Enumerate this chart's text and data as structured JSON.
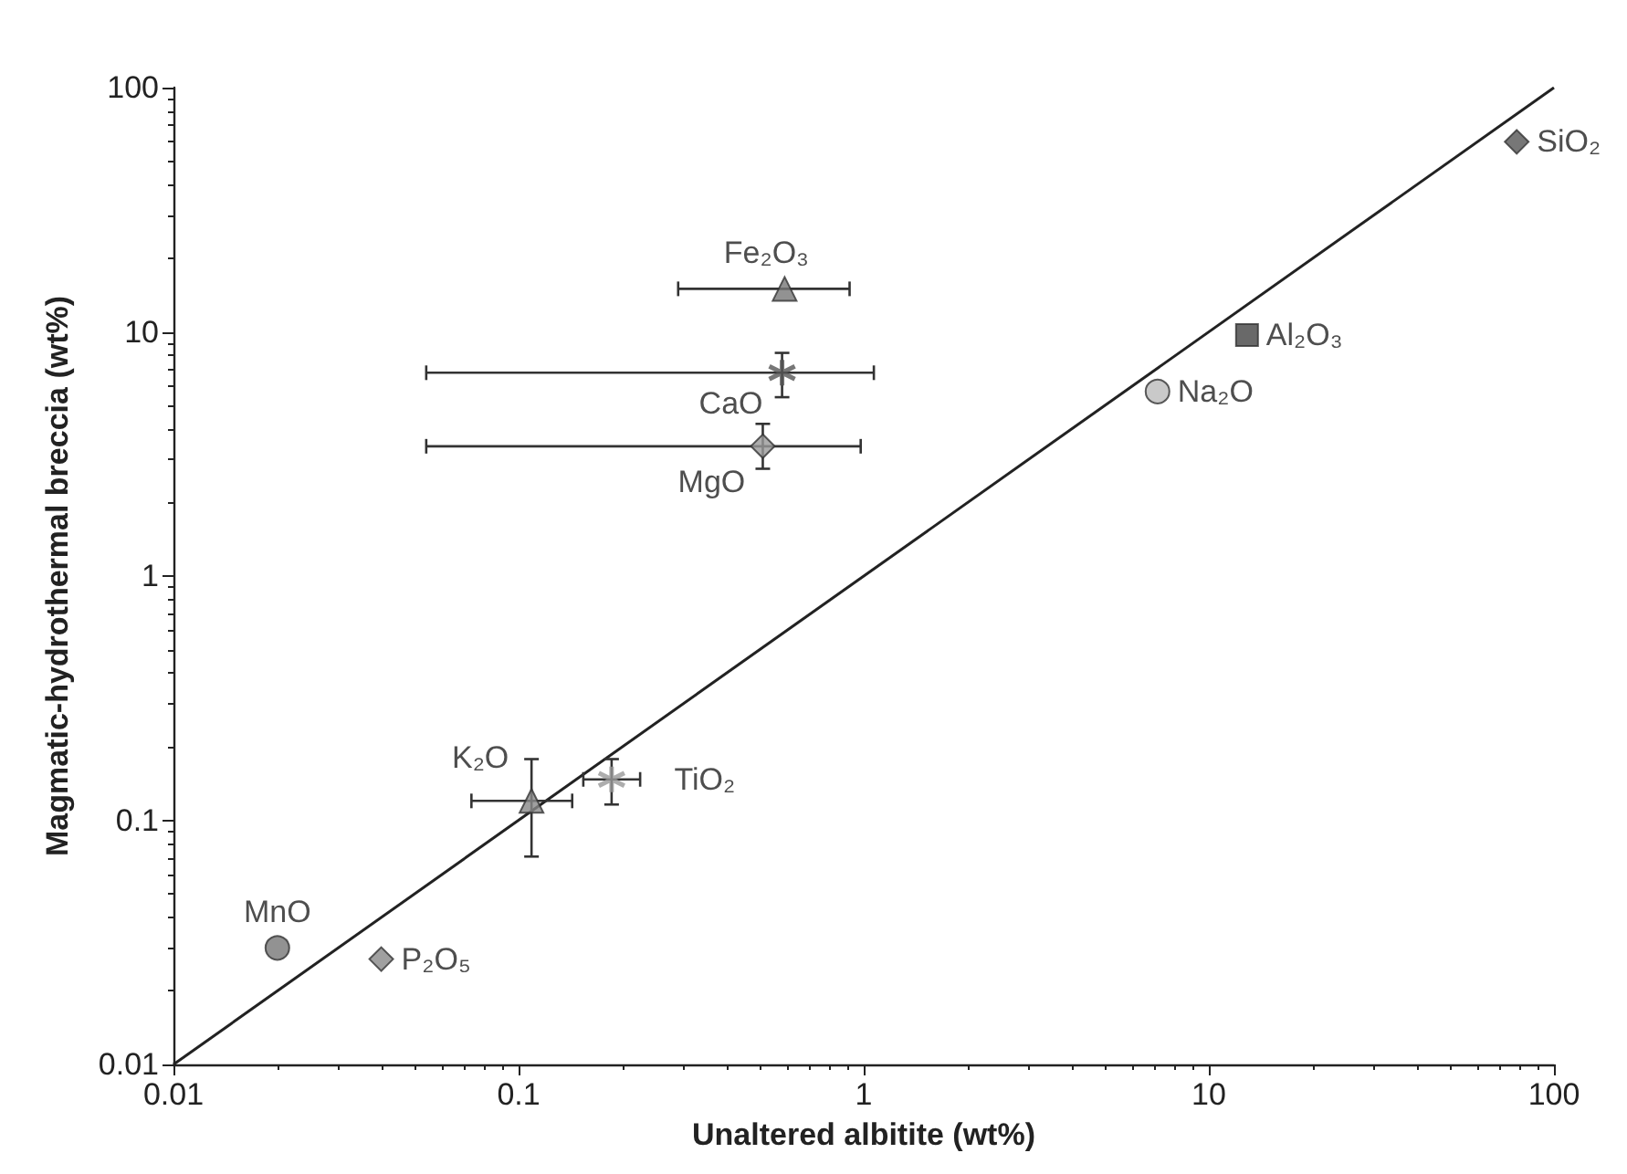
{
  "chart_data": {
    "type": "scatter",
    "xlabel": "Unaltered albitite (wt%)",
    "ylabel": "Magmatic-hydrothermal breccia (wt%)",
    "log": "xy",
    "grid": false,
    "legend": false,
    "xlim": [
      0.01,
      100
    ],
    "ylim": [
      0.01,
      100
    ],
    "xticks": [
      0.01,
      0.1,
      1,
      10,
      100
    ],
    "yticks": [
      0.01,
      0.1,
      1,
      10,
      100
    ],
    "series": [
      {
        "type": "line",
        "color": "#222222",
        "marker": "none",
        "line_style": "solid",
        "x": [
          0.01,
          100
        ],
        "values": [
          0.01,
          100
        ]
      },
      {
        "name": "Fe₂O₃",
        "color": "#777777",
        "marker": "triangle",
        "x": [
          0.59
        ],
        "values": [
          15
        ],
        "xerrors": [
          [
            0.29,
            0.91
          ]
        ]
      },
      {
        "name": "CaO",
        "color": "#555555",
        "marker": "cross",
        "x": [
          0.58
        ],
        "values": [
          6.8
        ],
        "errors": [
          [
            5.4,
            8.2
          ]
        ],
        "xerrors": [
          [
            0.054,
            1.07
          ]
        ]
      },
      {
        "name": "MgO",
        "color": "#999999",
        "marker": "diamond",
        "x": [
          0.51
        ],
        "values": [
          3.4
        ],
        "errors": [
          [
            2.75,
            4.2
          ]
        ],
        "xerrors": [
          [
            0.054,
            0.98
          ]
        ]
      },
      {
        "name": "K₂O",
        "color": "#888888",
        "marker": "triangle",
        "x": [
          0.109
        ],
        "values": [
          0.12
        ],
        "errors": [
          [
            0.071,
            0.178
          ]
        ],
        "xerrors": [
          [
            0.073,
            0.143
          ]
        ]
      },
      {
        "name": "TiO₂",
        "color": "#999999",
        "marker": "cross",
        "x": [
          0.186
        ],
        "values": [
          0.147
        ],
        "errors": [
          [
            0.116,
            0.178
          ]
        ],
        "xerrors": [
          [
            0.154,
            0.225
          ]
        ]
      },
      {
        "name": "MnO",
        "color": "#777777",
        "marker": "circle",
        "x": [
          0.02
        ],
        "values": [
          0.03
        ]
      },
      {
        "name": "P₂O₅",
        "color": "#888888",
        "marker": "diamond",
        "x": [
          0.04
        ],
        "values": [
          0.027
        ]
      },
      {
        "name": "Na₂O",
        "color": "#bbbbbb",
        "marker": "circle",
        "x": [
          7.1
        ],
        "values": [
          5.7
        ]
      },
      {
        "name": "Al₂O₃",
        "color": "#444444",
        "marker": "square",
        "x": [
          12.9
        ],
        "values": [
          9.7
        ]
      },
      {
        "name": "SiO₂",
        "color": "#555555",
        "marker": "diamond",
        "x": [
          78
        ],
        "values": [
          60
        ]
      }
    ]
  }
}
